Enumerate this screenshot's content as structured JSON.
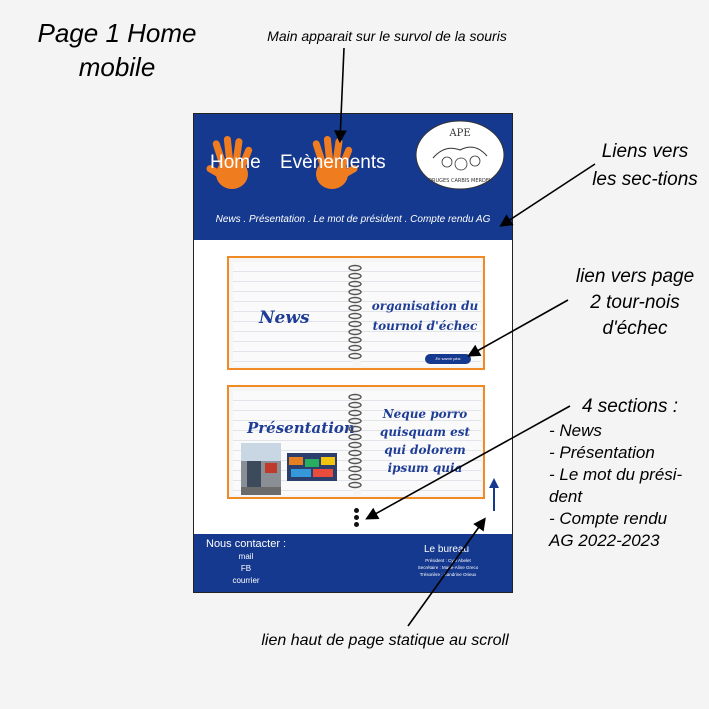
{
  "annotations": {
    "page_title": "Page 1 Home mobile",
    "hover_note": "Main apparait sur le survol de la souris",
    "links_note": "Liens vers les sec-tions",
    "tournoi_note": "lien vers page 2 tour-nois d'échec",
    "sections_title": "4 sections :",
    "sections_list": [
      "- News",
      "- Présentation",
      "- Le mot du prési-",
      "dent",
      "-  Compte rendu",
      "AG 2022-2023"
    ],
    "scroll_note": "lien haut de page statique au scroll"
  },
  "header": {
    "nav": [
      "Home",
      "Evènements"
    ],
    "logo_text": "APE",
    "logo_subtext": "DRUGES CARBIS MERDEL",
    "sections_bar": "News . Présentation . Le mot de président . Compte rendu AG"
  },
  "cards": {
    "news": {
      "title": "News",
      "text": "organisation du tournoi d'échec",
      "read_more": "En savoir plus"
    },
    "presentation": {
      "title": "Présentation",
      "text": "Neque porro quisquam est qui dolorem ipsum quia"
    }
  },
  "footer": {
    "contact_title": "Nous contacter :",
    "contact_items": [
      "mail",
      "FB",
      "courrier"
    ],
    "bureau_title": "Le bureau",
    "bureau_lines": [
      "Président : Cyril Abelet",
      "Secrétaire : Marie-Aline Greco",
      "Trésorière : Sandrine Orieux"
    ]
  },
  "colors": {
    "brand_blue": "#15398e",
    "notebook_orange": "#f08a24",
    "hand_orange": "#f07c20",
    "script_blue": "#1f3d96"
  },
  "icons": [
    "hand-icon",
    "logo-icon",
    "spiral-icon",
    "scroll-up-arrow-icon",
    "dots-icon"
  ]
}
